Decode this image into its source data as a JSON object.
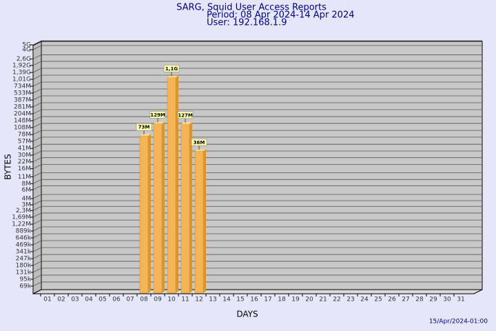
{
  "chart_data": {
    "type": "bar",
    "title": "SARG, Squid User Access Reports",
    "subtitle": [
      "Period: 08 Apr 2024-14 Apr 2024",
      "User: 192.168.1.9"
    ],
    "xlabel": "DAYS",
    "ylabel": "BYTES",
    "footer": "15/Apr/2024-01:00",
    "log": true,
    "grid": true,
    "color": "#f5b556",
    "categories": [
      "01",
      "02",
      "03",
      "04",
      "05",
      "06",
      "07",
      "08",
      "09",
      "10",
      "11",
      "12",
      "13",
      "14",
      "15",
      "16",
      "17",
      "18",
      "19",
      "20",
      "21",
      "22",
      "23",
      "24",
      "25",
      "26",
      "27",
      "28",
      "29",
      "30",
      "31"
    ],
    "values": [
      null,
      null,
      null,
      null,
      null,
      null,
      null,
      73000000,
      129000000,
      1100000000,
      127000000,
      36000000,
      null,
      null,
      null,
      null,
      null,
      null,
      null,
      null,
      null,
      null,
      null,
      null,
      null,
      null,
      null,
      null,
      null,
      null,
      null
    ],
    "value_labels": [
      null,
      null,
      null,
      null,
      null,
      null,
      null,
      "73M",
      "129M",
      "1,1G",
      "127M",
      "36M",
      null,
      null,
      null,
      null,
      null,
      null,
      null,
      null,
      null,
      null,
      null,
      null,
      null,
      null,
      null,
      null,
      null,
      null,
      null
    ],
    "ylim": [
      50000,
      5000000000
    ],
    "yticks": [
      {
        "value": 69000,
        "label": "69k"
      },
      {
        "value": 95000,
        "label": "95k"
      },
      {
        "value": 131000,
        "label": "131k"
      },
      {
        "value": 180000,
        "label": "180k"
      },
      {
        "value": 247000,
        "label": "247k"
      },
      {
        "value": 341000,
        "label": "341k"
      },
      {
        "value": 469000,
        "label": "469k"
      },
      {
        "value": 646000,
        "label": "646k"
      },
      {
        "value": 889000,
        "label": "889k"
      },
      {
        "value": 1220000,
        "label": "1,22M"
      },
      {
        "value": 1690000,
        "label": "1,69M"
      },
      {
        "value": 2300000,
        "label": "2,3M"
      },
      {
        "value": 3000000,
        "label": "3M"
      },
      {
        "value": 4000000,
        "label": "4M"
      },
      {
        "value": 6000000,
        "label": "6M"
      },
      {
        "value": 8000000,
        "label": "8M"
      },
      {
        "value": 11000000,
        "label": "11M"
      },
      {
        "value": 16000000,
        "label": "16M"
      },
      {
        "value": 22000000,
        "label": "22M"
      },
      {
        "value": 30000000,
        "label": "30M"
      },
      {
        "value": 41000000,
        "label": "41M"
      },
      {
        "value": 57000000,
        "label": "57M"
      },
      {
        "value": 78000000,
        "label": "78M"
      },
      {
        "value": 108000000,
        "label": "108M"
      },
      {
        "value": 148000000,
        "label": "148M"
      },
      {
        "value": 204000000,
        "label": "204M"
      },
      {
        "value": 281000000,
        "label": "281M"
      },
      {
        "value": 387000000,
        "label": "387M"
      },
      {
        "value": 533000000,
        "label": "533M"
      },
      {
        "value": 734000000,
        "label": "734M"
      },
      {
        "value": 1010000000,
        "label": "1,01G"
      },
      {
        "value": 1390000000,
        "label": "1,39G"
      },
      {
        "value": 1920000000,
        "label": "1,92G"
      },
      {
        "value": 2600000000,
        "label": "2,6G"
      },
      {
        "value": 4000000000,
        "label": "4G"
      },
      {
        "value": 5000000000,
        "label": "5G"
      }
    ]
  }
}
